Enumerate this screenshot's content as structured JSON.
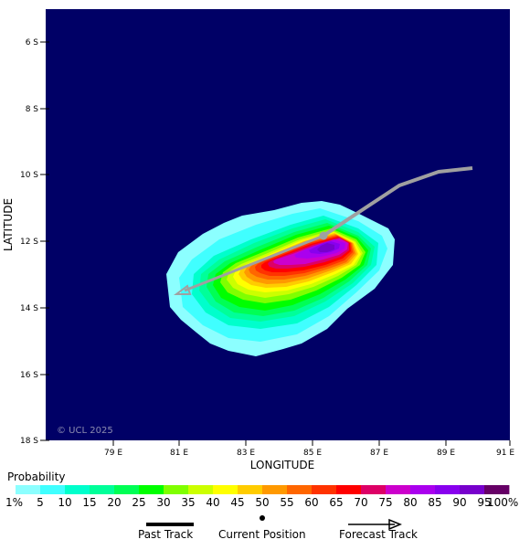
{
  "map": {
    "x_axis": {
      "title": "LONGITUDE",
      "ticks": [
        "79 E",
        "81 E",
        "83 E",
        "85 E",
        "87 E",
        "89 E",
        "91 E"
      ]
    },
    "y_axis": {
      "title": "LATITUDE",
      "ticks": [
        "6 S",
        "8 S",
        "10 S",
        "12 S",
        "14 S",
        "16 S",
        "18 S"
      ]
    },
    "copyright": "© UCL 2025",
    "background_color": "#000066",
    "track_color": "#a0a0a0"
  },
  "legend": {
    "title": "Probability",
    "labels": [
      "1%",
      "5",
      "10",
      "15",
      "20",
      "25",
      "30",
      "35",
      "40",
      "45",
      "50",
      "55",
      "60",
      "65",
      "70",
      "75",
      "80",
      "85",
      "90",
      "95",
      "100%"
    ],
    "colors": [
      "#8cffff",
      "#40ffff",
      "#00ffcc",
      "#00ff99",
      "#00ff55",
      "#00ff00",
      "#80ff00",
      "#ccff00",
      "#ffff00",
      "#ffcc00",
      "#ff9900",
      "#ff6600",
      "#ff3300",
      "#ff0000",
      "#dd0066",
      "#cc00cc",
      "#aa00ee",
      "#8800ee",
      "#7700cc",
      "#660066"
    ],
    "track_items": {
      "past": "Past Track",
      "current": "Current Position",
      "forecast": "Forecast Track"
    }
  }
}
